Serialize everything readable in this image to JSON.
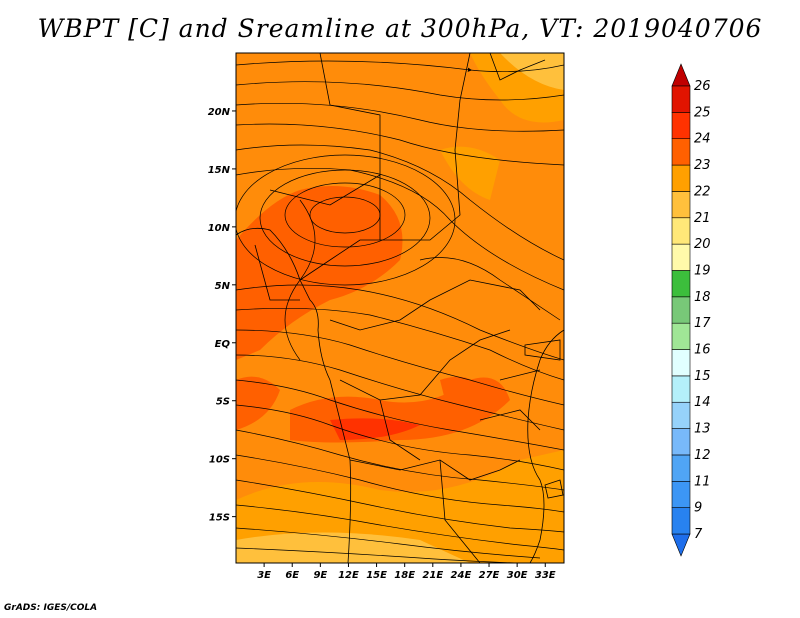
{
  "title": "WBPT [C] and Sreamline at 300hPa, VT: 2019040706",
  "footer": "GrADS: IGES/COLA",
  "chart_data": {
    "type": "heatmap",
    "title": "WBPT [C] and Sreamline at 300hPa, VT: 2019040706",
    "variable": "WBPT [C]",
    "overlay": "streamline",
    "x_ticks": [
      "3E",
      "6E",
      "9E",
      "12E",
      "15E",
      "18E",
      "21E",
      "24E",
      "27E",
      "30E",
      "33E"
    ],
    "x_values": [
      3,
      6,
      9,
      12,
      15,
      18,
      21,
      24,
      27,
      30,
      33
    ],
    "y_ticks": [
      "20N",
      "15N",
      "10N",
      "5N",
      "EQ",
      "5S",
      "10S",
      "15S"
    ],
    "y_values": [
      20,
      15,
      10,
      5,
      0,
      -5,
      -10,
      -15
    ],
    "xlim": [
      0,
      35
    ],
    "ylim": [
      -19,
      25
    ],
    "colorbar": {
      "levels": [
        "7",
        "9",
        "11",
        "12",
        "13",
        "14",
        "15",
        "16",
        "17",
        "18",
        "19",
        "20",
        "21",
        "22",
        "23",
        "24",
        "25",
        "26"
      ],
      "colors": [
        "#1e6eeb",
        "#2882f0",
        "#3c96f5",
        "#50a5f5",
        "#78b9fa",
        "#96d2fa",
        "#b4f0fa",
        "#e1ffff",
        "#a0e696",
        "#78c878",
        "#3cbe3c",
        "#fffaaa",
        "#ffe878",
        "#ffc03c",
        "#ffa000",
        "#ff6000",
        "#ff3200",
        "#e11400",
        "#c00000"
      ]
    }
  }
}
